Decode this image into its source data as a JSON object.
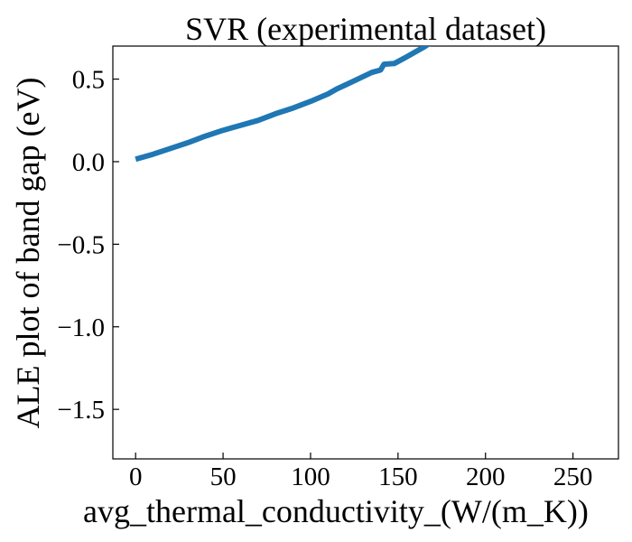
{
  "chart_data": {
    "type": "line",
    "title": "SVR (experimental dataset)",
    "xlabel": "avg_thermal_conductivity_(W/(m_K))",
    "ylabel": "ALE plot of band gap (eV)",
    "xlim": [
      -13,
      276
    ],
    "ylim": [
      -1.8,
      0.7
    ],
    "xticks": [
      0,
      50,
      100,
      150,
      200,
      250
    ],
    "xtick_labels": [
      "0",
      "50",
      "100",
      "150",
      "200",
      "250"
    ],
    "yticks": [
      0.5,
      0.0,
      -0.5,
      -1.0,
      -1.5
    ],
    "ytick_labels": [
      "0.5",
      "0.0",
      "−0.5",
      "−1.0",
      "−1.5"
    ],
    "grid": false,
    "series": [
      {
        "color": "#1f77b4",
        "x": [
          0,
          10,
          20,
          30,
          40,
          50,
          60,
          70,
          80,
          90,
          100,
          110,
          115,
          120,
          125,
          130,
          135,
          140,
          142,
          148,
          155,
          160,
          165,
          170
        ],
        "y": [
          0.015,
          0.045,
          0.08,
          0.115,
          0.155,
          0.19,
          0.22,
          0.25,
          0.29,
          0.325,
          0.365,
          0.41,
          0.44,
          0.465,
          0.49,
          0.515,
          0.54,
          0.555,
          0.59,
          0.595,
          0.635,
          0.665,
          0.695,
          0.73
        ]
      }
    ]
  }
}
